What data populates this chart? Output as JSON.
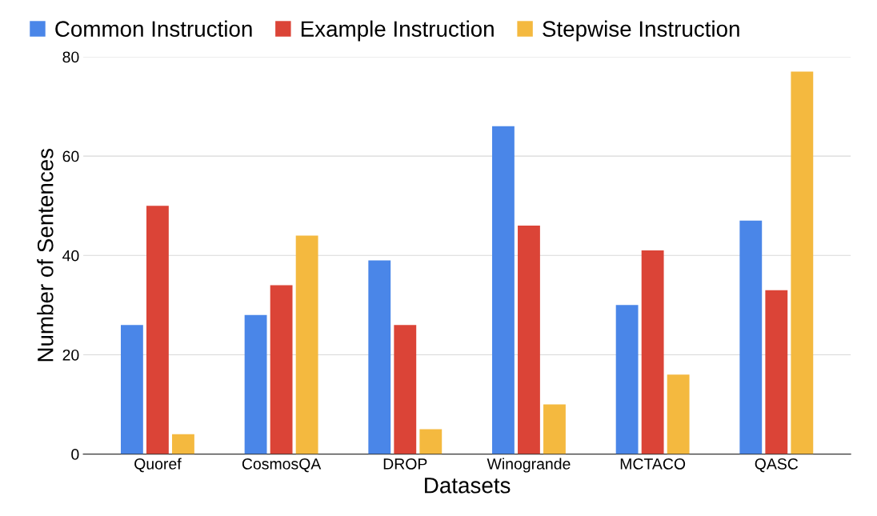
{
  "chart_data": {
    "type": "bar",
    "xlabel": "Datasets",
    "ylabel": "Number of Sentences",
    "categories": [
      "Quoref",
      "CosmosQA",
      "DROP",
      "Winogrande",
      "MCTACO",
      "QASC"
    ],
    "series": [
      {
        "name": "Common Instruction",
        "color": "#4a86e8",
        "values": [
          26,
          28,
          39,
          66,
          30,
          47
        ]
      },
      {
        "name": "Example Instruction",
        "color": "#db4437",
        "values": [
          50,
          34,
          26,
          46,
          41,
          33
        ]
      },
      {
        "name": "Stepwise Instruction",
        "color": "#f4b93f",
        "values": [
          4,
          44,
          5,
          10,
          16,
          77
        ]
      }
    ],
    "ylim": [
      0,
      80
    ],
    "yticks": [
      0,
      20,
      40,
      60,
      80
    ],
    "grid": "y",
    "legend": "top left"
  }
}
